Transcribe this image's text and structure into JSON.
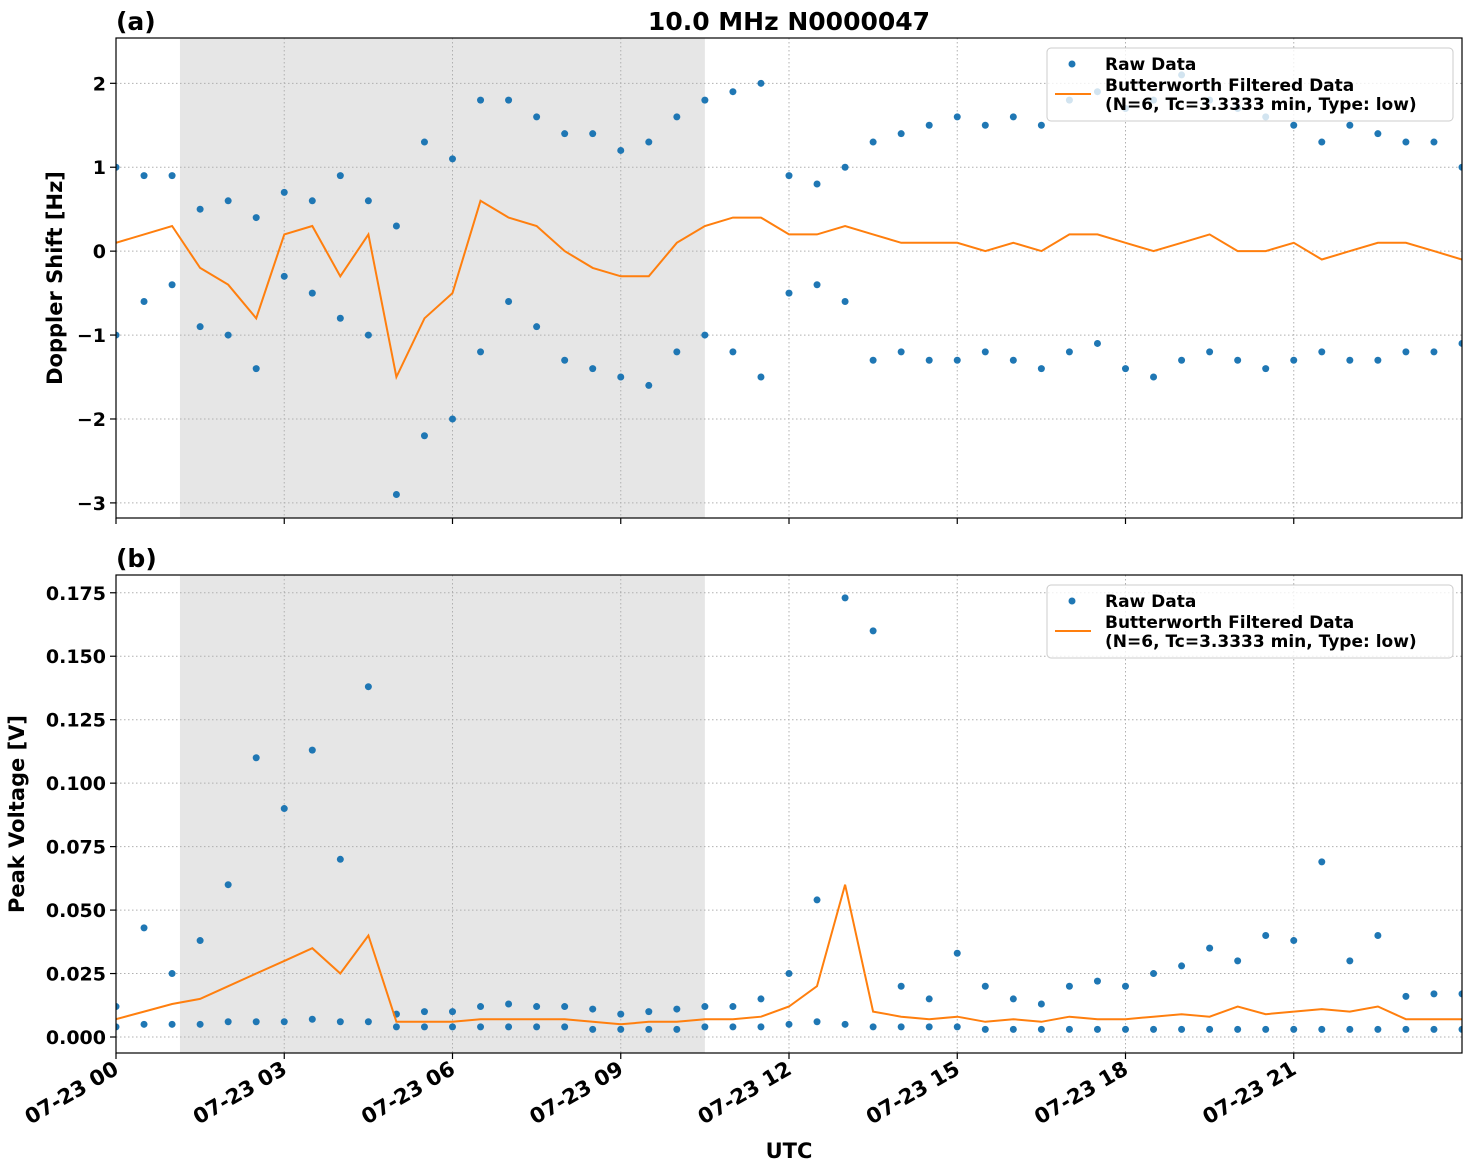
{
  "chart_data": [
    {
      "type": "scatter-line",
      "title": "10.0 MHz N0000047",
      "panel_label": "(a)",
      "ylabel": "Doppler Shift [Hz]",
      "xlim": [
        0,
        24
      ],
      "ylim": [
        -3.18,
        2.54
      ],
      "xticks": [
        0,
        3,
        6,
        9,
        12,
        15,
        18,
        21
      ],
      "yticks": [
        {
          "value": -3,
          "label": "−3"
        },
        {
          "value": -2,
          "label": "−2"
        },
        {
          "value": -1,
          "label": "−1"
        },
        0,
        1,
        2
      ],
      "grid": true,
      "span": [
        1.14,
        10.5
      ],
      "span_color": "#e6e6e6",
      "legend": "upper right",
      "series": [
        {
          "name": "Raw Data",
          "type": "scatter",
          "color": "#1f77b4",
          "x": [
            0,
            0,
            0.5,
            0.5,
            1,
            1,
            1.5,
            1.5,
            2,
            2,
            2.5,
            2.5,
            3,
            3,
            3.5,
            3.5,
            4,
            4,
            4.5,
            4.5,
            5,
            5,
            5.5,
            5.5,
            6,
            6,
            6.5,
            6.5,
            7,
            7,
            7.5,
            7.5,
            8,
            8,
            8.5,
            8.5,
            9,
            9,
            9.5,
            9.5,
            10,
            10,
            10.5,
            10.5,
            11,
            11,
            11.5,
            11.5,
            12,
            12,
            12.5,
            12.5,
            13,
            13,
            13.5,
            13.5,
            14,
            14,
            14.5,
            14.5,
            15,
            15,
            15.5,
            15.5,
            16,
            16,
            16.5,
            16.5,
            17,
            17,
            17.5,
            17.5,
            18,
            18,
            18.5,
            18.5,
            19,
            19,
            19.5,
            19.5,
            20,
            20,
            20.5,
            20.5,
            21,
            21,
            21.5,
            21.5,
            22,
            22,
            22.5,
            22.5,
            23,
            23,
            23.5,
            23.5,
            24,
            24
          ],
          "values": [
            1.0,
            -1.0,
            0.9,
            -0.6,
            0.9,
            -0.4,
            0.5,
            -0.9,
            0.6,
            -1.0,
            0.4,
            -1.4,
            0.7,
            -0.3,
            0.6,
            -0.5,
            0.9,
            -0.8,
            0.6,
            -1.0,
            0.3,
            -2.9,
            1.3,
            -2.2,
            1.1,
            -2.0,
            1.8,
            -1.2,
            1.8,
            -0.6,
            1.6,
            -0.9,
            1.4,
            -1.3,
            1.4,
            -1.4,
            1.2,
            -1.5,
            1.3,
            -1.6,
            1.6,
            -1.2,
            1.8,
            -1.0,
            1.9,
            -1.2,
            2.0,
            -1.5,
            0.9,
            -0.5,
            0.8,
            -0.4,
            1.0,
            -0.6,
            1.3,
            -1.3,
            1.4,
            -1.2,
            1.5,
            -1.3,
            1.6,
            -1.3,
            1.5,
            -1.2,
            1.6,
            -1.3,
            1.5,
            -1.4,
            1.8,
            -1.2,
            1.9,
            -1.1,
            1.7,
            -1.4,
            1.8,
            -1.5,
            2.1,
            -1.3,
            1.8,
            -1.2,
            1.7,
            -1.3,
            1.6,
            -1.4,
            1.5,
            -1.3,
            1.3,
            -1.2,
            1.5,
            -1.3,
            1.4,
            -1.3,
            1.3,
            -1.2,
            1.3,
            -1.2,
            1.0,
            -1.1
          ]
        },
        {
          "name": "Butterworth Filtered Data\n(N=6, Tc=3.3333 min, Type: low)",
          "type": "line",
          "color": "#ff7f0e",
          "x": [
            0,
            0.5,
            1,
            1.5,
            2,
            2.5,
            3,
            3.5,
            4,
            4.5,
            5,
            5.5,
            6,
            6.5,
            7,
            7.5,
            8,
            8.5,
            9,
            9.5,
            10,
            10.5,
            11,
            11.5,
            12,
            12.5,
            13,
            13.5,
            14,
            14.5,
            15,
            15.5,
            16,
            16.5,
            17,
            17.5,
            18,
            18.5,
            19,
            19.5,
            20,
            20.5,
            21,
            21.5,
            22,
            22.5,
            23,
            23.5,
            24
          ],
          "values": [
            0.1,
            0.2,
            0.3,
            -0.2,
            -0.4,
            -0.8,
            0.2,
            0.3,
            -0.3,
            0.2,
            -1.5,
            -0.8,
            -0.5,
            0.6,
            0.4,
            0.3,
            0.0,
            -0.2,
            -0.3,
            -0.3,
            0.1,
            0.3,
            0.4,
            0.4,
            0.2,
            0.2,
            0.3,
            0.2,
            0.1,
            0.1,
            0.1,
            0.0,
            0.1,
            0.0,
            0.2,
            0.2,
            0.1,
            0.0,
            0.1,
            0.2,
            0.0,
            0.0,
            0.1,
            -0.1,
            0.0,
            0.1,
            0.1,
            0.0,
            -0.1
          ]
        }
      ]
    },
    {
      "type": "scatter-line",
      "panel_label": "(b)",
      "ylabel": "Peak Voltage [V]",
      "xlabel": "UTC",
      "xlim": [
        0,
        24
      ],
      "ylim": [
        -0.0063,
        0.182
      ],
      "xticks": [
        {
          "value": 0,
          "label": "07-23 00"
        },
        {
          "value": 3,
          "label": "07-23 03"
        },
        {
          "value": 6,
          "label": "07-23 06"
        },
        {
          "value": 9,
          "label": "07-23 09"
        },
        {
          "value": 12,
          "label": "07-23 12"
        },
        {
          "value": 15,
          "label": "07-23 15"
        },
        {
          "value": 18,
          "label": "07-23 18"
        },
        {
          "value": 21,
          "label": "07-23 21"
        }
      ],
      "yticks": [
        {
          "value": 0,
          "label": "0.000"
        },
        {
          "value": 0.025,
          "label": "0.025"
        },
        {
          "value": 0.05,
          "label": "0.050"
        },
        {
          "value": 0.075,
          "label": "0.075"
        },
        {
          "value": 0.1,
          "label": "0.100"
        },
        {
          "value": 0.125,
          "label": "0.125"
        },
        {
          "value": 0.15,
          "label": "0.150"
        },
        {
          "value": 0.175,
          "label": "0.175"
        }
      ],
      "grid": true,
      "span": [
        1.14,
        10.5
      ],
      "span_color": "#e6e6e6",
      "legend": "upper right",
      "series": [
        {
          "name": "Raw Data",
          "type": "scatter",
          "color": "#1f77b4",
          "x": [
            0,
            0,
            0.5,
            0.5,
            1,
            1,
            1.5,
            1.5,
            2,
            2,
            2.5,
            2.5,
            3,
            3,
            3.5,
            3.5,
            4,
            4,
            4.5,
            4.5,
            5,
            5,
            5.5,
            5.5,
            6,
            6,
            6.5,
            6.5,
            7,
            7,
            7.5,
            7.5,
            8,
            8,
            8.5,
            8.5,
            9,
            9,
            9.5,
            9.5,
            10,
            10,
            10.5,
            10.5,
            11,
            11,
            11.5,
            11.5,
            12,
            12,
            12.5,
            12.5,
            13,
            13,
            13.5,
            13.5,
            14,
            14,
            14.5,
            14.5,
            15,
            15,
            15.5,
            15.5,
            16,
            16,
            16.5,
            16.5,
            17,
            17,
            17.5,
            17.5,
            18,
            18,
            18.5,
            18.5,
            19,
            19,
            19.5,
            19.5,
            20,
            20,
            20.5,
            20.5,
            21,
            21,
            21.5,
            21.5,
            22,
            22,
            22.5,
            22.5,
            23,
            23,
            23.5,
            23.5,
            24,
            24
          ],
          "values": [
            0.012,
            0.004,
            0.043,
            0.005,
            0.025,
            0.005,
            0.038,
            0.005,
            0.06,
            0.006,
            0.11,
            0.006,
            0.09,
            0.006,
            0.113,
            0.007,
            0.07,
            0.006,
            0.138,
            0.006,
            0.009,
            0.004,
            0.01,
            0.004,
            0.01,
            0.004,
            0.012,
            0.004,
            0.013,
            0.004,
            0.012,
            0.004,
            0.012,
            0.004,
            0.011,
            0.003,
            0.009,
            0.003,
            0.01,
            0.003,
            0.011,
            0.003,
            0.012,
            0.004,
            0.012,
            0.004,
            0.015,
            0.004,
            0.025,
            0.005,
            0.054,
            0.006,
            0.173,
            0.005,
            0.16,
            0.004,
            0.02,
            0.004,
            0.015,
            0.004,
            0.033,
            0.004,
            0.02,
            0.003,
            0.015,
            0.003,
            0.013,
            0.003,
            0.02,
            0.003,
            0.022,
            0.003,
            0.02,
            0.003,
            0.025,
            0.003,
            0.028,
            0.003,
            0.035,
            0.003,
            0.03,
            0.003,
            0.04,
            0.003,
            0.038,
            0.003,
            0.069,
            0.003,
            0.03,
            0.003,
            0.04,
            0.003,
            0.016,
            0.003,
            0.017,
            0.003,
            0.017,
            0.003
          ]
        },
        {
          "name": "Butterworth Filtered Data\n(N=6, Tc=3.3333 min, Type: low)",
          "type": "line",
          "color": "#ff7f0e",
          "x": [
            0,
            0.5,
            1,
            1.5,
            2,
            2.5,
            3,
            3.5,
            4,
            4.5,
            5,
            5.5,
            6,
            6.5,
            7,
            7.5,
            8,
            8.5,
            9,
            9.5,
            10,
            10.5,
            11,
            11.5,
            12,
            12.5,
            13,
            13.5,
            14,
            14.5,
            15,
            15.5,
            16,
            16.5,
            17,
            17.5,
            18,
            18.5,
            19,
            19.5,
            20,
            20.5,
            21,
            21.5,
            22,
            22.5,
            23,
            23.5,
            24
          ],
          "values": [
            0.007,
            0.01,
            0.013,
            0.015,
            0.02,
            0.025,
            0.03,
            0.035,
            0.025,
            0.04,
            0.006,
            0.006,
            0.006,
            0.007,
            0.007,
            0.007,
            0.007,
            0.006,
            0.005,
            0.006,
            0.006,
            0.007,
            0.007,
            0.008,
            0.012,
            0.02,
            0.06,
            0.01,
            0.008,
            0.007,
            0.008,
            0.006,
            0.007,
            0.006,
            0.008,
            0.007,
            0.007,
            0.008,
            0.009,
            0.008,
            0.012,
            0.009,
            0.01,
            0.011,
            0.01,
            0.012,
            0.007,
            0.007,
            0.007
          ]
        }
      ]
    }
  ]
}
